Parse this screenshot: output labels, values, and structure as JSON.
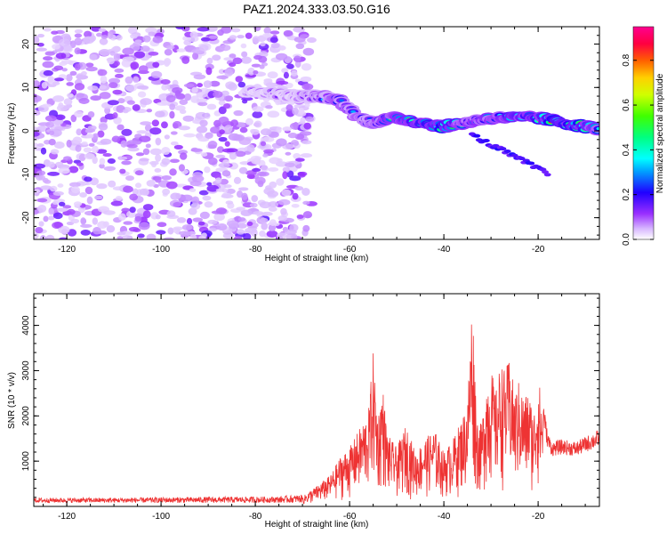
{
  "title": "PAZ1.2024.333.03.50.G16",
  "chart_data": [
    {
      "type": "heatmap",
      "xlabel": "Height of straight line (km)",
      "ylabel": "Frequency (Hz)",
      "xlim": [
        -127,
        -7
      ],
      "ylim": [
        -25,
        24
      ],
      "xticks": [
        -120,
        -100,
        -80,
        -60,
        -40,
        -20
      ],
      "yticks": [
        -20,
        -10,
        0,
        10,
        20
      ],
      "colorbar": {
        "label": "Normalized spectral amplitude",
        "range": [
          0,
          0.95
        ],
        "ticks": [
          0.0,
          0.2,
          0.4,
          0.6,
          0.8
        ],
        "tick_labels": [
          "0.0",
          "0.2",
          "0.4",
          "0.6",
          "0.8"
        ]
      },
      "ridge": {
        "description_points_height_km": [
          -82,
          -78,
          -72,
          -66,
          -62,
          -58,
          -55,
          -50,
          -45,
          -40,
          -35,
          -30,
          -25,
          -20,
          -15,
          -10,
          -7
        ],
        "frequency_hz": [
          9,
          9,
          8,
          8,
          7,
          3,
          2,
          3,
          2,
          1,
          2,
          3,
          3,
          3,
          2,
          1,
          0.5
        ],
        "peak_amplitude": [
          0.15,
          0.2,
          0.2,
          0.35,
          0.45,
          0.4,
          0.45,
          0.7,
          0.8,
          0.95,
          0.55,
          0.6,
          0.75,
          0.8,
          0.95,
          0.9,
          0.5
        ]
      },
      "noise_region_height_km": [
        -127,
        -68
      ]
    },
    {
      "type": "line",
      "xlabel": "Height of straight line (km)",
      "ylabel": "SNR (10 * v/v)",
      "xlim": [
        -127,
        -7
      ],
      "ylim": [
        0,
        4700
      ],
      "xticks": [
        -120,
        -100,
        -80,
        -60,
        -40,
        -20
      ],
      "yticks": [
        1000,
        2000,
        3000,
        4000
      ],
      "color": "#ee3333",
      "envelope": {
        "x": [
          -127,
          -110,
          -90,
          -75,
          -70,
          -67,
          -64,
          -62,
          -60,
          -58,
          -56,
          -55,
          -54,
          -53,
          -52,
          -50,
          -48,
          -46,
          -44,
          -42,
          -40,
          -38,
          -36,
          -35,
          -34,
          -33,
          -32,
          -31,
          -30,
          -29,
          -28,
          -27,
          -26,
          -25,
          -24,
          -23,
          -22,
          -21,
          -20,
          -19,
          -18,
          -17,
          -15,
          -12,
          -10,
          -8,
          -7
        ],
        "y": [
          150,
          150,
          170,
          180,
          220,
          450,
          700,
          1100,
          1300,
          1700,
          2100,
          3400,
          2000,
          2700,
          1600,
          1300,
          1800,
          1200,
          1500,
          1700,
          1200,
          1500,
          2000,
          2300,
          4700,
          2000,
          1800,
          2800,
          3100,
          2500,
          3200,
          3000,
          3300,
          2500,
          2800,
          2400,
          2600,
          2000,
          2900,
          2200,
          1500,
          1300,
          1350,
          1300,
          1400,
          1500,
          1550
        ]
      }
    }
  ]
}
